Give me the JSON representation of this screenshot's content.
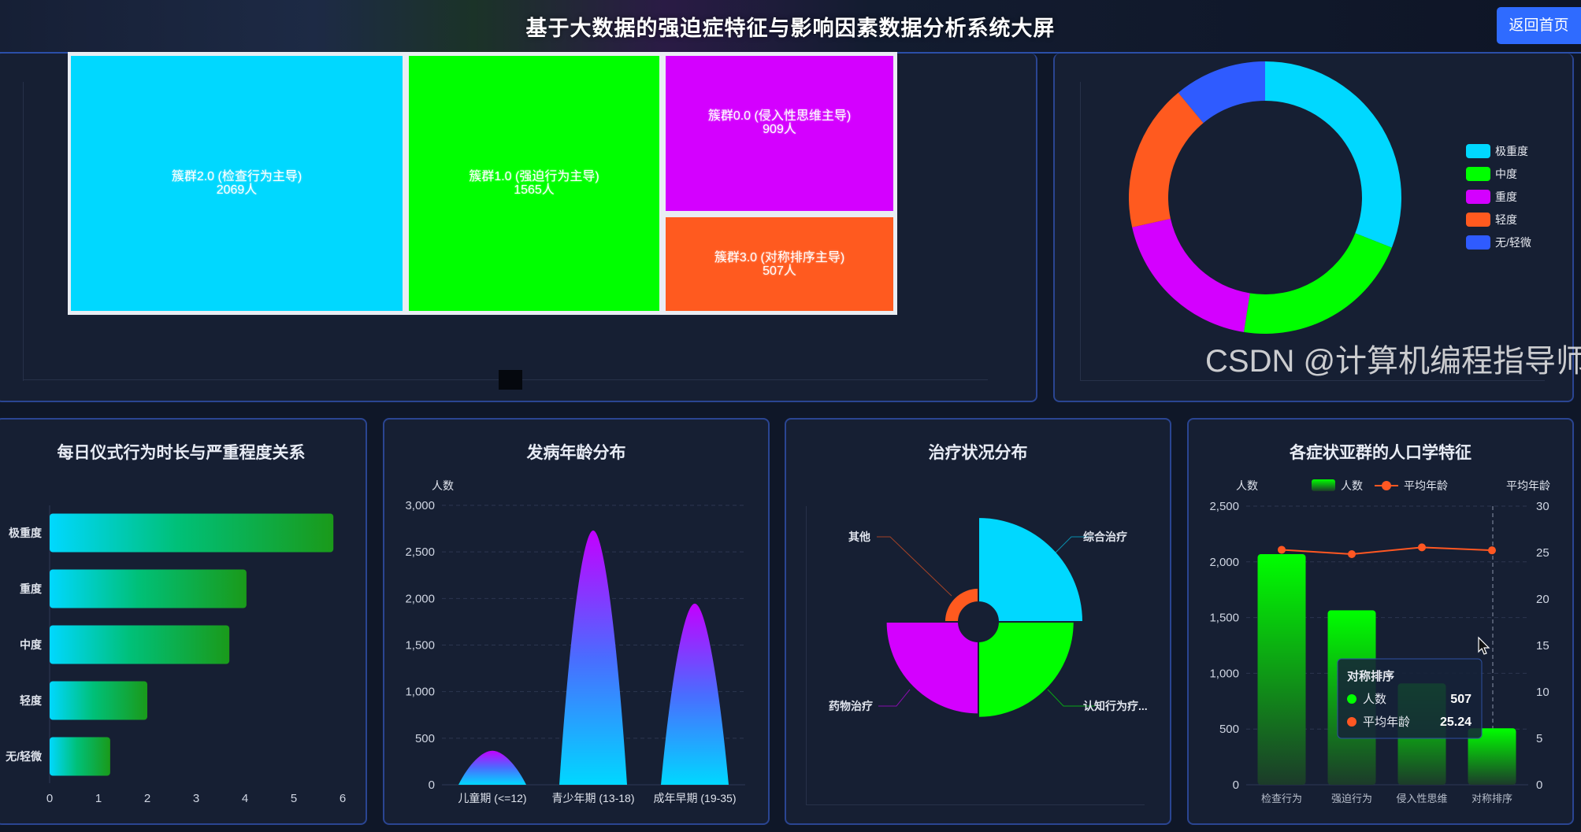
{
  "header": {
    "title": "基于大数据的强迫症特征与影响因素数据分析系统大屏",
    "back_button": "返回首页"
  },
  "watermark": "CSDN @计算机编程指导师",
  "chart_data": [
    {
      "id": "cluster-treemap",
      "type": "treemap",
      "items": [
        {
          "name": "簇群2.0 (检查行为主导)",
          "label": "2069人",
          "value": 2069,
          "color": "#00d8ff"
        },
        {
          "name": "簇群1.0 (强迫行为主导)",
          "label": "1565人",
          "value": 1565,
          "color": "#00ff00"
        },
        {
          "name": "簇群0.0 (侵入性思维主导)",
          "label": "909人",
          "value": 909,
          "color": "#d400ff"
        },
        {
          "name": "簇群3.0 (对称排序主导)",
          "label": "507人",
          "value": 507,
          "color": "#ff5a1f"
        }
      ]
    },
    {
      "id": "severity-donut",
      "type": "pie",
      "legend_position": "right",
      "categories": [
        "极重度",
        "中度",
        "重度",
        "轻度",
        "无/轻微"
      ],
      "values_percent": [
        31,
        21.5,
        19,
        17.5,
        11
      ],
      "colors": [
        "#00d8ff",
        "#00ff00",
        "#d400ff",
        "#ff5a1f",
        "#2f5bff"
      ]
    },
    {
      "id": "ritual-duration-bar",
      "type": "bar",
      "orientation": "horizontal",
      "title": "每日仪式行为时长与严重程度关系",
      "categories": [
        "极重度",
        "重度",
        "中度",
        "轻度",
        "无/轻微"
      ],
      "values": [
        5.81,
        4.03,
        3.68,
        2.0,
        1.24
      ],
      "xlim": [
        0,
        6
      ],
      "xticks": [
        "0",
        "1",
        "2",
        "3",
        "4",
        "5",
        "6"
      ],
      "colors": [
        "#00d8ff",
        "#1a9a1a"
      ]
    },
    {
      "id": "onset-age-peaks",
      "type": "bar",
      "style": "pictorial-peak",
      "title": "发病年龄分布",
      "ylabel": "人数",
      "categories": [
        "儿童期 (<=12)",
        "青少年期 (13-18)",
        "成年早期 (19-35)"
      ],
      "values": [
        366,
        2730,
        1945
      ],
      "ylim": [
        0,
        3000
      ],
      "yticks": [
        "0",
        "500",
        "1,000",
        "1,500",
        "2,000",
        "2,500",
        "3,000"
      ],
      "colors": [
        "#c000ff",
        "#00d8ff"
      ]
    },
    {
      "id": "treatment-rose",
      "type": "pie",
      "style": "nightingale-rose",
      "title": "治疗状况分布",
      "categories": [
        "综合治疗",
        "认知行为疗...",
        "药物治疗",
        "其他"
      ],
      "values": [
        1730,
        1550,
        1480,
        290
      ],
      "colors": [
        "#00d8ff",
        "#00ff00",
        "#d400ff",
        "#ff5a1f"
      ]
    },
    {
      "id": "subgroup-demographics",
      "type": "bar",
      "title": "各症状亚群的人口学特征",
      "ylabel": "人数",
      "ylabel_right": "平均年龄",
      "categories": [
        "检查行为",
        "强迫行为",
        "侵入性思维",
        "对称排序"
      ],
      "series": [
        {
          "name": "人数",
          "type": "bar",
          "values": [
            2069,
            1565,
            909,
            507
          ],
          "color": "#00ff00"
        },
        {
          "name": "平均年龄",
          "type": "line",
          "values": [
            25.3,
            24.83,
            25.56,
            25.24
          ],
          "color": "#ff5722"
        }
      ],
      "ylim": [
        0,
        2500
      ],
      "ylim_right": [
        0,
        30
      ],
      "yticks": [
        "0",
        "500",
        "1,000",
        "1,500",
        "2,000",
        "2,500"
      ],
      "yticks_right": [
        "0",
        "5",
        "10",
        "15",
        "20",
        "25",
        "30"
      ],
      "legend_position": "top",
      "tooltip": {
        "title": "对称排序",
        "rows": [
          {
            "name": "人数",
            "value": "507"
          },
          {
            "name": "平均年龄",
            "value": "25.24"
          }
        ]
      }
    }
  ]
}
